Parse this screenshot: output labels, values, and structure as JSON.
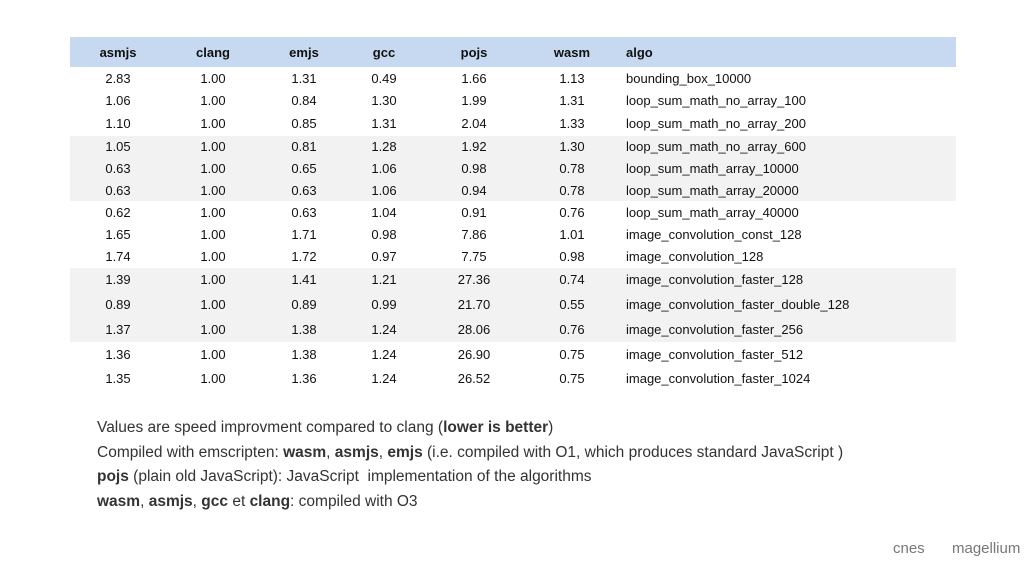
{
  "table": {
    "header": [
      "asmjs",
      "clang",
      "emjs",
      "gcc",
      "pojs",
      "wasm",
      "algo"
    ],
    "rows": [
      [
        "2.83",
        "1.00",
        "1.31",
        "0.49",
        "1.66",
        "1.13",
        "bounding_box_10000"
      ],
      [
        "1.06",
        "1.00",
        "0.84",
        "1.30",
        "1.99",
        "1.31",
        "loop_sum_math_no_array_100"
      ],
      [
        "1.10",
        "1.00",
        "0.85",
        "1.31",
        "2.04",
        "1.33",
        "loop_sum_math_no_array_200"
      ],
      [
        "1.05",
        "1.00",
        "0.81",
        "1.28",
        "1.92",
        "1.30",
        "loop_sum_math_no_array_600"
      ],
      [
        "0.63",
        "1.00",
        "0.65",
        "1.06",
        "0.98",
        "0.78",
        "loop_sum_math_array_10000"
      ],
      [
        "0.63",
        "1.00",
        "0.63",
        "1.06",
        "0.94",
        "0.78",
        "loop_sum_math_array_20000"
      ],
      [
        "0.62",
        "1.00",
        "0.63",
        "1.04",
        "0.91",
        "0.76",
        "loop_sum_math_array_40000"
      ],
      [
        "1.65",
        "1.00",
        "1.71",
        "0.98",
        "7.86",
        "1.01",
        "image_convolution_const_128"
      ],
      [
        "1.74",
        "1.00",
        "1.72",
        "0.97",
        "7.75",
        "0.98",
        "image_convolution_128"
      ],
      [
        "1.39",
        "1.00",
        "1.41",
        "1.21",
        "27.36",
        "0.74",
        "image_convolution_faster_128"
      ],
      [
        "0.89",
        "1.00",
        "0.89",
        "0.99",
        "21.70",
        "0.55",
        "image_convolution_faster_double_128"
      ],
      [
        "1.37",
        "1.00",
        "1.38",
        "1.24",
        "28.06",
        "0.76",
        "image_convolution_faster_256"
      ],
      [
        "1.36",
        "1.00",
        "1.38",
        "1.24",
        "26.90",
        "0.75",
        "image_convolution_faster_512"
      ],
      [
        "1.35",
        "1.00",
        "1.36",
        "1.24",
        "26.52",
        "0.75",
        "image_convolution_faster_1024"
      ]
    ]
  },
  "notes": [
    [
      "Values are speed improvment compared to clang (",
      "lower is better",
      ")"
    ],
    [
      "Compiled with emscripten: ",
      "wasm",
      ", ",
      "asmjs",
      ", ",
      "emjs",
      " (i.e. compiled with O1, which produces standard JavaScript )"
    ],
    [
      "pojs",
      " (plain old JavaScript): JavaScript  implementation of the algorithms"
    ],
    [
      "wasm",
      ", ",
      "asmjs",
      ", ",
      "gcc",
      " et ",
      "clang",
      ": compiled with O3"
    ]
  ],
  "logos": [
    "cnes",
    "magellium"
  ]
}
